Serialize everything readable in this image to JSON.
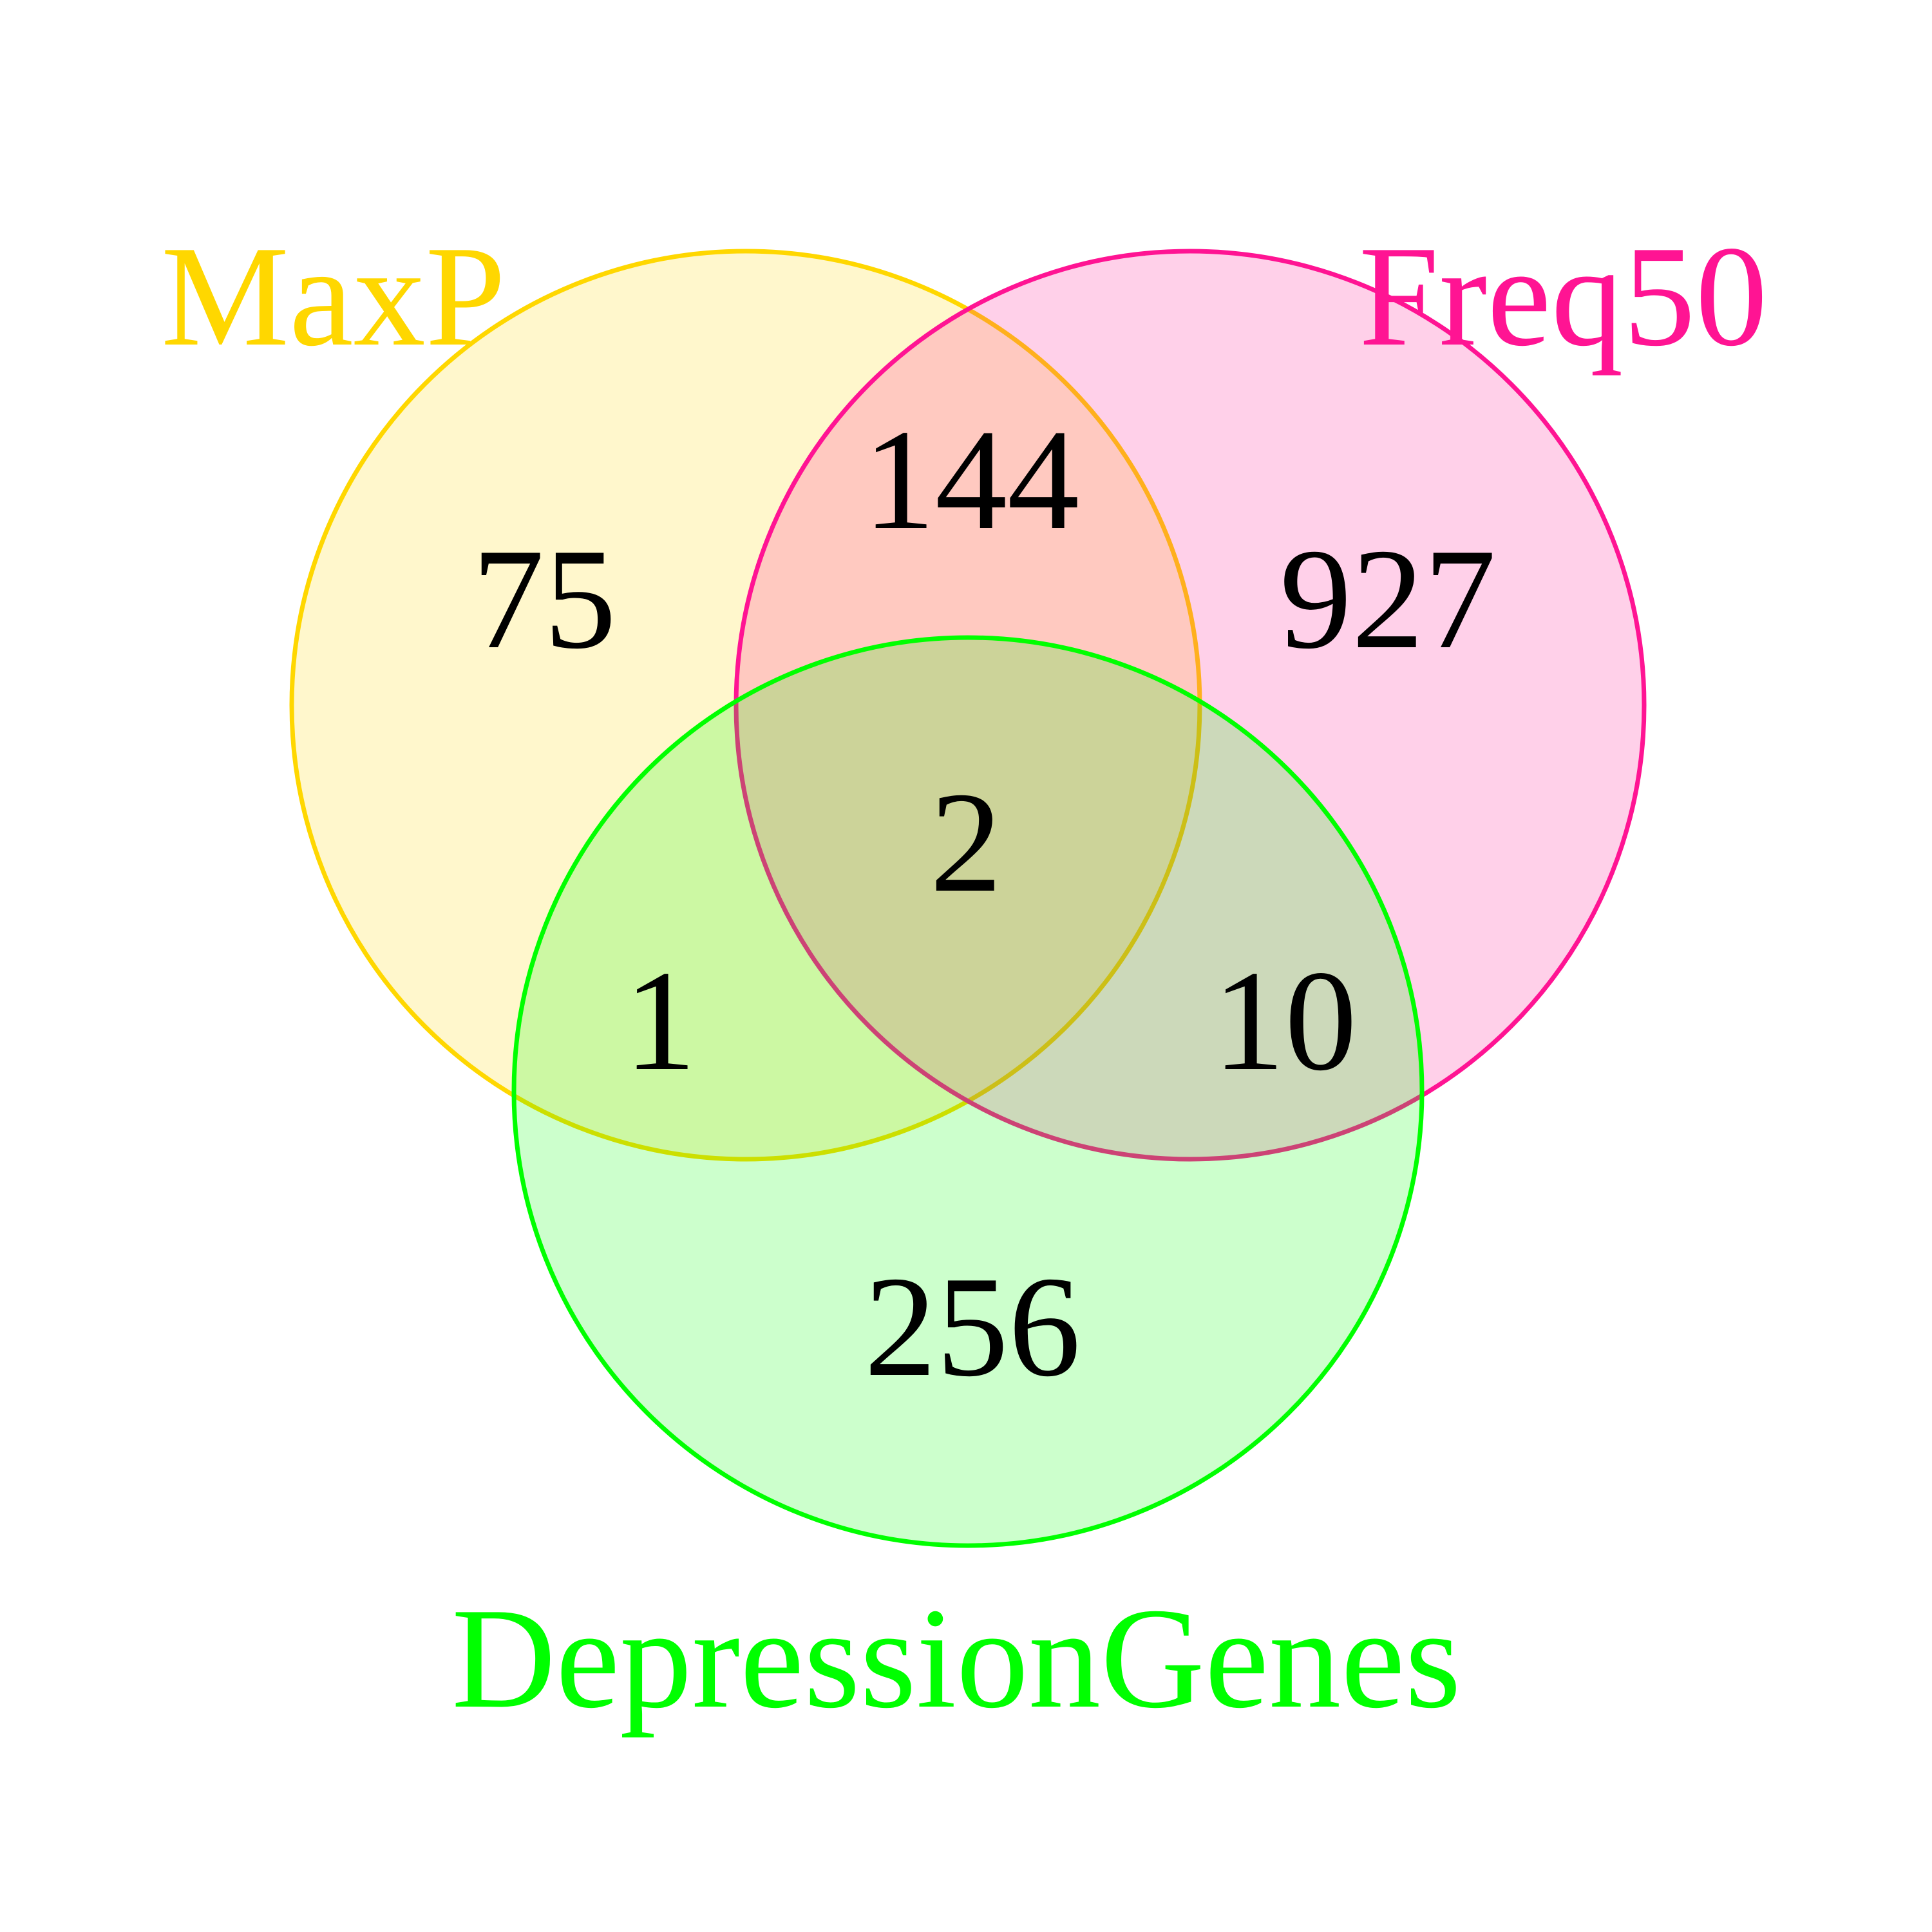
{
  "sets": [
    {
      "id": "maxp",
      "name": "MaxP",
      "color": "#FFD700",
      "fill": "#FFD700",
      "fill_opacity": 0.2
    },
    {
      "id": "freq50",
      "name": "Freq50",
      "color": "#FF1493",
      "fill": "#FF1493",
      "fill_opacity": 0.2
    },
    {
      "id": "depression",
      "name": "DepressionGenes",
      "color": "#00FF00",
      "fill": "#00FF00",
      "fill_opacity": 0.2
    }
  ],
  "regions": {
    "maxp_only": "75",
    "freq50_only": "927",
    "depression_only": "256",
    "maxp_freq50": "144",
    "maxp_depression": "1",
    "freq50_depression": "10",
    "all_three": "2"
  }
}
